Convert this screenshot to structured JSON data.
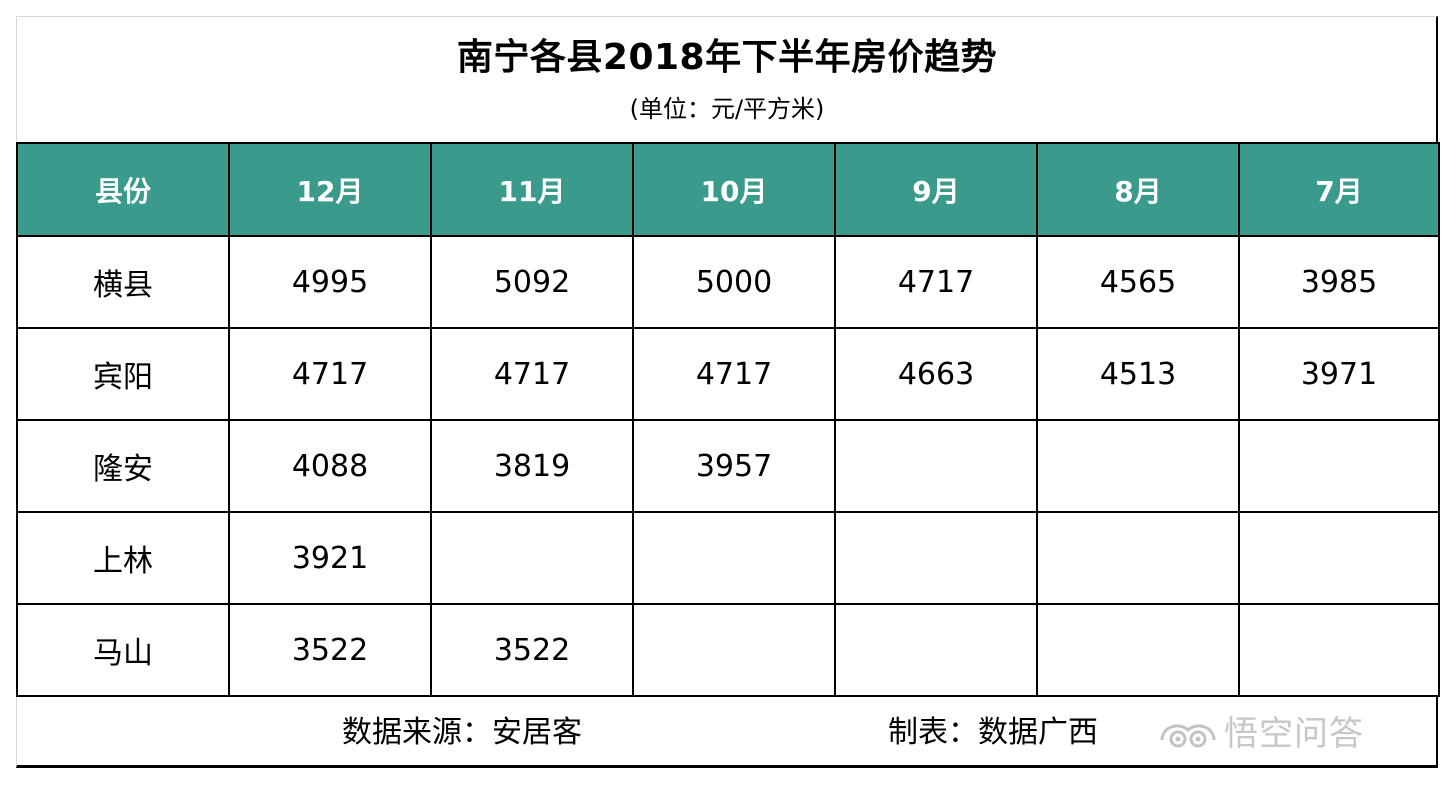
{
  "title": "南宁各县2018年下半年房价趋势",
  "subtitle": "(单位：元/平方米)",
  "table": {
    "headers": [
      "县份",
      "12月",
      "11月",
      "10月",
      "9月",
      "8月",
      "7月"
    ],
    "rows": [
      {
        "county": "横县",
        "values": [
          "4995",
          "5092",
          "5000",
          "4717",
          "4565",
          "3985"
        ]
      },
      {
        "county": "宾阳",
        "values": [
          "4717",
          "4717",
          "4717",
          "4663",
          "4513",
          "3971"
        ]
      },
      {
        "county": "隆安",
        "values": [
          "4088",
          "3819",
          "3957",
          "",
          "",
          ""
        ]
      },
      {
        "county": "上林",
        "values": [
          "3921",
          "",
          "",
          "",
          "",
          ""
        ]
      },
      {
        "county": "马山",
        "values": [
          "3522",
          "3522",
          "",
          "",
          "",
          ""
        ]
      }
    ]
  },
  "footer": {
    "source": "数据来源：安居客",
    "maker": "制表：数据广西"
  },
  "watermark": {
    "text": "悟空问答",
    "icon": "wukong-logo-icon"
  },
  "colors": {
    "header_bg": "#3a9a8c",
    "header_text": "#ffffff",
    "border": "#000000"
  }
}
